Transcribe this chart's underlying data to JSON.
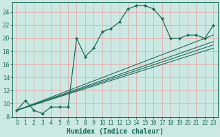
{
  "xlabel": "Humidex (Indice chaleur)",
  "xlim": [
    -0.5,
    23.5
  ],
  "ylim": [
    8,
    25.5
  ],
  "xticks": [
    0,
    1,
    2,
    3,
    4,
    5,
    6,
    7,
    8,
    9,
    10,
    11,
    12,
    13,
    14,
    15,
    16,
    17,
    18,
    19,
    20,
    21,
    22,
    23
  ],
  "yticks": [
    8,
    10,
    12,
    14,
    16,
    18,
    20,
    22,
    24
  ],
  "bg_color": "#cce8e2",
  "line_color": "#1a6b5a",
  "grid_color": "#e8a0a0",
  "main_x": [
    0,
    1,
    2,
    3,
    4,
    5,
    6,
    7,
    8,
    9,
    10,
    11,
    12,
    13,
    14,
    15,
    16,
    17,
    18,
    19,
    20,
    21,
    22,
    23
  ],
  "main_y": [
    9.0,
    10.5,
    9.0,
    8.5,
    9.5,
    9.5,
    9.5,
    20.0,
    17.2,
    18.5,
    21.0,
    21.5,
    22.5,
    24.5,
    25.0,
    25.0,
    24.5,
    23.0,
    20.0,
    20.0,
    20.5,
    20.5,
    20.0,
    22.0
  ],
  "trend_lines": [
    {
      "x": [
        0,
        23
      ],
      "y": [
        9.0,
        20.5
      ]
    },
    {
      "x": [
        0,
        23
      ],
      "y": [
        9.0,
        19.5
      ]
    },
    {
      "x": [
        0,
        23
      ],
      "y": [
        9.0,
        19.0
      ]
    },
    {
      "x": [
        0,
        23
      ],
      "y": [
        9.0,
        18.5
      ]
    }
  ],
  "tick_fontsize": 5.5,
  "xlabel_fontsize": 7,
  "lw_main": 0.9,
  "lw_trend": 0.8,
  "marker_size": 2.2
}
